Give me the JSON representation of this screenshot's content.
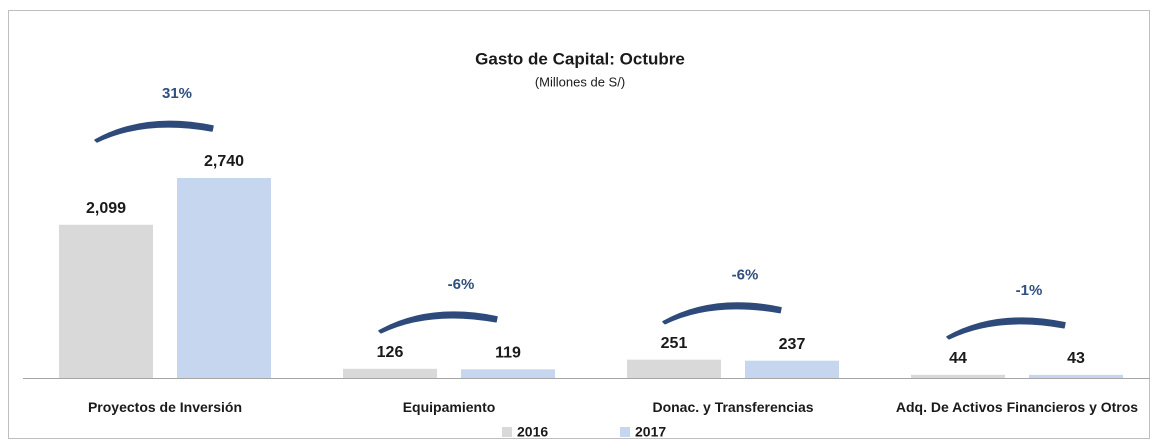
{
  "chart_data": {
    "type": "bar",
    "title": "Gasto de Capital: Octubre",
    "subtitle": "(Millones de S/)",
    "categories": [
      "Proyectos de Inversión",
      "Equipamiento",
      "Donac. y Transferencias",
      "Adq. De Activos Financieros y Otros"
    ],
    "series": [
      {
        "name": "2016",
        "color": "#d9d9d9",
        "values": [
          2099,
          126,
          251,
          44
        ],
        "value_labels": [
          "2,099",
          "126",
          "251",
          "44"
        ]
      },
      {
        "name": "2017",
        "color": "#c6d6ee",
        "values": [
          2740,
          119,
          237,
          43
        ],
        "value_labels": [
          "2,740",
          "119",
          "237",
          "43"
        ]
      }
    ],
    "annotations": [
      "31%",
      "-6%",
      "-6%",
      "-1%"
    ],
    "annotation_color": "#2f4f7f",
    "legend": "bottom"
  }
}
